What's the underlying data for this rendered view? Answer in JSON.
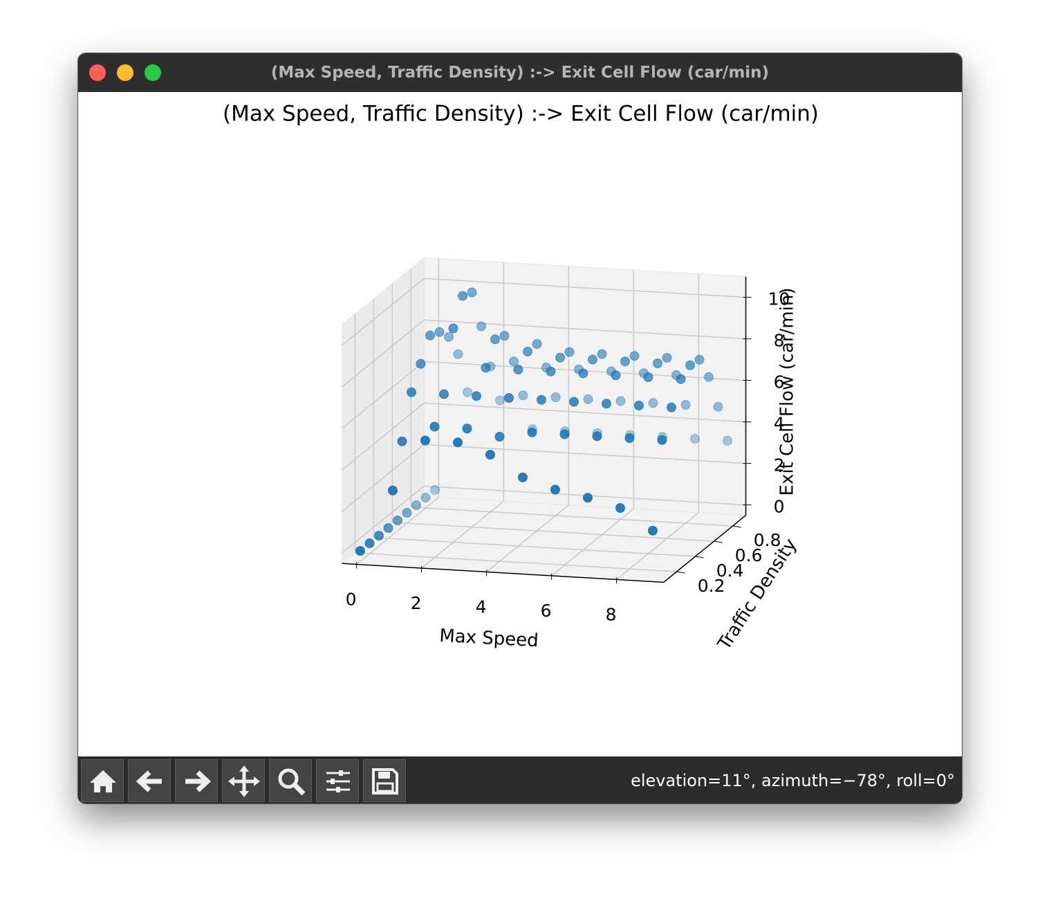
{
  "window": {
    "title": "(Max Speed, Traffic Density) :-> Exit Cell Flow (car/min)"
  },
  "chart_data": {
    "type": "scatter3d",
    "title": "(Max Speed, Traffic Density) :-> Exit Cell Flow (car/min)",
    "x_label": "Max Speed",
    "y_label": "Traffic Density",
    "z_label": "Exit Cell Flow (car/min)",
    "color": "#1f77b4",
    "grid": true,
    "xlim": [
      -0.45,
      9.45
    ],
    "ylim": [
      0.06,
      0.94
    ],
    "zlim": [
      -0.5,
      11
    ],
    "xticks": [
      0,
      2,
      4,
      6,
      8
    ],
    "yticks": [
      0.2,
      0.4,
      0.6,
      0.8
    ],
    "zticks": [
      0,
      2,
      4,
      6,
      8,
      10
    ],
    "x": [
      0,
      1,
      2,
      3,
      4,
      5,
      6,
      7,
      8,
      9,
      0,
      1,
      2,
      3,
      4,
      5,
      6,
      7,
      8,
      9,
      0,
      1,
      2,
      3,
      4,
      5,
      6,
      7,
      8,
      9,
      0,
      1,
      2,
      3,
      4,
      5,
      6,
      7,
      8,
      9,
      0,
      1,
      2,
      3,
      4,
      5,
      6,
      7,
      8,
      9,
      0,
      1,
      2,
      3,
      4,
      5,
      6,
      7,
      8,
      9,
      0,
      1,
      2,
      3,
      4,
      5,
      6,
      7,
      8,
      9,
      0,
      1,
      2,
      3,
      4,
      5,
      6,
      7,
      8,
      9,
      0,
      1,
      2,
      3,
      4,
      5,
      6,
      7,
      8,
      9
    ],
    "y": [
      0.1,
      0.1,
      0.1,
      0.1,
      0.1,
      0.1,
      0.1,
      0.1,
      0.1,
      0.1,
      0.2,
      0.2,
      0.2,
      0.2,
      0.2,
      0.2,
      0.2,
      0.2,
      0.2,
      0.2,
      0.3,
      0.3,
      0.3,
      0.3,
      0.3,
      0.3,
      0.3,
      0.3,
      0.3,
      0.3,
      0.4,
      0.4,
      0.4,
      0.4,
      0.4,
      0.4,
      0.4,
      0.4,
      0.4,
      0.4,
      0.5,
      0.5,
      0.5,
      0.5,
      0.5,
      0.5,
      0.5,
      0.5,
      0.5,
      0.5,
      0.6,
      0.6,
      0.6,
      0.6,
      0.6,
      0.6,
      0.6,
      0.6,
      0.6,
      0.6,
      0.7,
      0.7,
      0.7,
      0.7,
      0.7,
      0.7,
      0.7,
      0.7,
      0.7,
      0.7,
      0.8,
      0.8,
      0.8,
      0.8,
      0.8,
      0.8,
      0.8,
      0.8,
      0.8,
      0.8,
      0.9,
      0.9,
      0.9,
      0.9,
      0.9,
      0.9,
      0.9,
      0.9,
      0.9,
      0.9
    ],
    "z": [
      0,
      3,
      5.5,
      5.5,
      5,
      4,
      3.5,
      3.2,
      2.8,
      1.8,
      0,
      5,
      5.8,
      5.8,
      5.5,
      5.8,
      5.8,
      5.8,
      5.8,
      5.8,
      0,
      7,
      7,
      7,
      7,
      7,
      7,
      7,
      7,
      7,
      0,
      8,
      9.8,
      8,
      8,
      8,
      8,
      8,
      8,
      8,
      0,
      9,
      11,
      9,
      8.5,
      8.3,
      8.3,
      8.3,
      8.3,
      8.3,
      0,
      8.8,
      10.8,
      8.8,
      8.5,
      8.2,
      8.2,
      8.2,
      8.2,
      8.2,
      0,
      8.2,
      8.8,
      7.2,
      7,
      7,
      7,
      7,
      7,
      7,
      0,
      7,
      6.5,
      5.2,
      5.2,
      5.2,
      5.2,
      5.2,
      5.2,
      5.2,
      0,
      4.8,
      4.5,
      3.2,
      3.2,
      3.2,
      3.2,
      3.2,
      3.2,
      3.2
    ]
  },
  "toolbar": {
    "status": "elevation=11°, azimuth=−78°, roll=0°"
  }
}
